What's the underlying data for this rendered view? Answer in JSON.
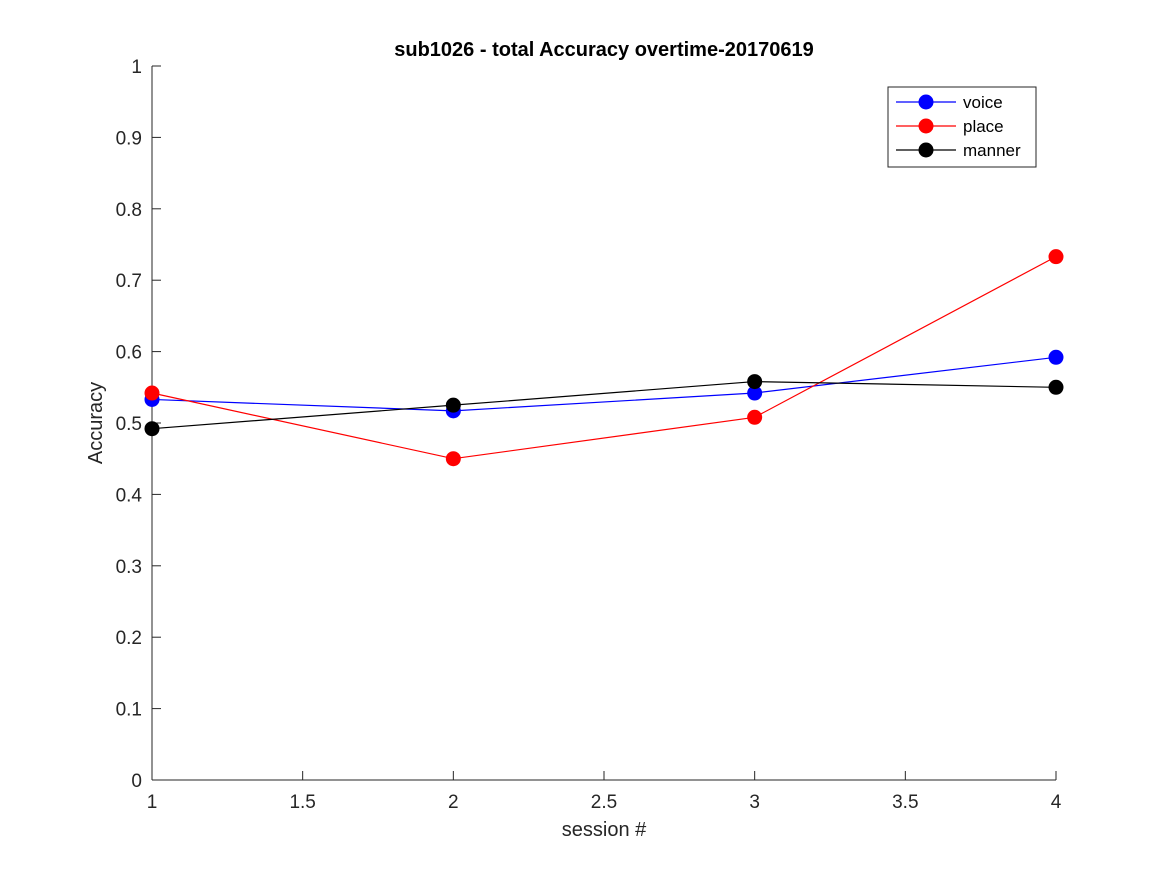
{
  "chart_data": {
    "type": "line",
    "title": "sub1026 - total Accuracy overtime-20170619",
    "xlabel": "session #",
    "ylabel": "Accuracy",
    "xlim": [
      1,
      4
    ],
    "ylim": [
      0,
      1
    ],
    "xticks": [
      1,
      1.5,
      2,
      2.5,
      3,
      3.5,
      4
    ],
    "xtick_labels": [
      "1",
      "1.5",
      "2",
      "2.5",
      "3",
      "3.5",
      "4"
    ],
    "yticks": [
      0,
      0.1,
      0.2,
      0.3,
      0.4,
      0.5,
      0.6,
      0.7,
      0.8,
      0.9,
      1
    ],
    "ytick_labels": [
      "0",
      "0.1",
      "0.2",
      "0.3",
      "0.4",
      "0.5",
      "0.6",
      "0.7",
      "0.8",
      "0.9",
      "1"
    ],
    "grid": false,
    "legend_position": "top-right",
    "x": [
      1,
      2,
      3,
      4
    ],
    "series": [
      {
        "name": "voice",
        "color": "#0000ff",
        "values": [
          0.533,
          0.517,
          0.542,
          0.592
        ]
      },
      {
        "name": "place",
        "color": "#ff0000",
        "values": [
          0.542,
          0.45,
          0.508,
          0.733
        ]
      },
      {
        "name": "manner",
        "color": "#000000",
        "values": [
          0.492,
          0.525,
          0.558,
          0.55
        ]
      }
    ]
  }
}
